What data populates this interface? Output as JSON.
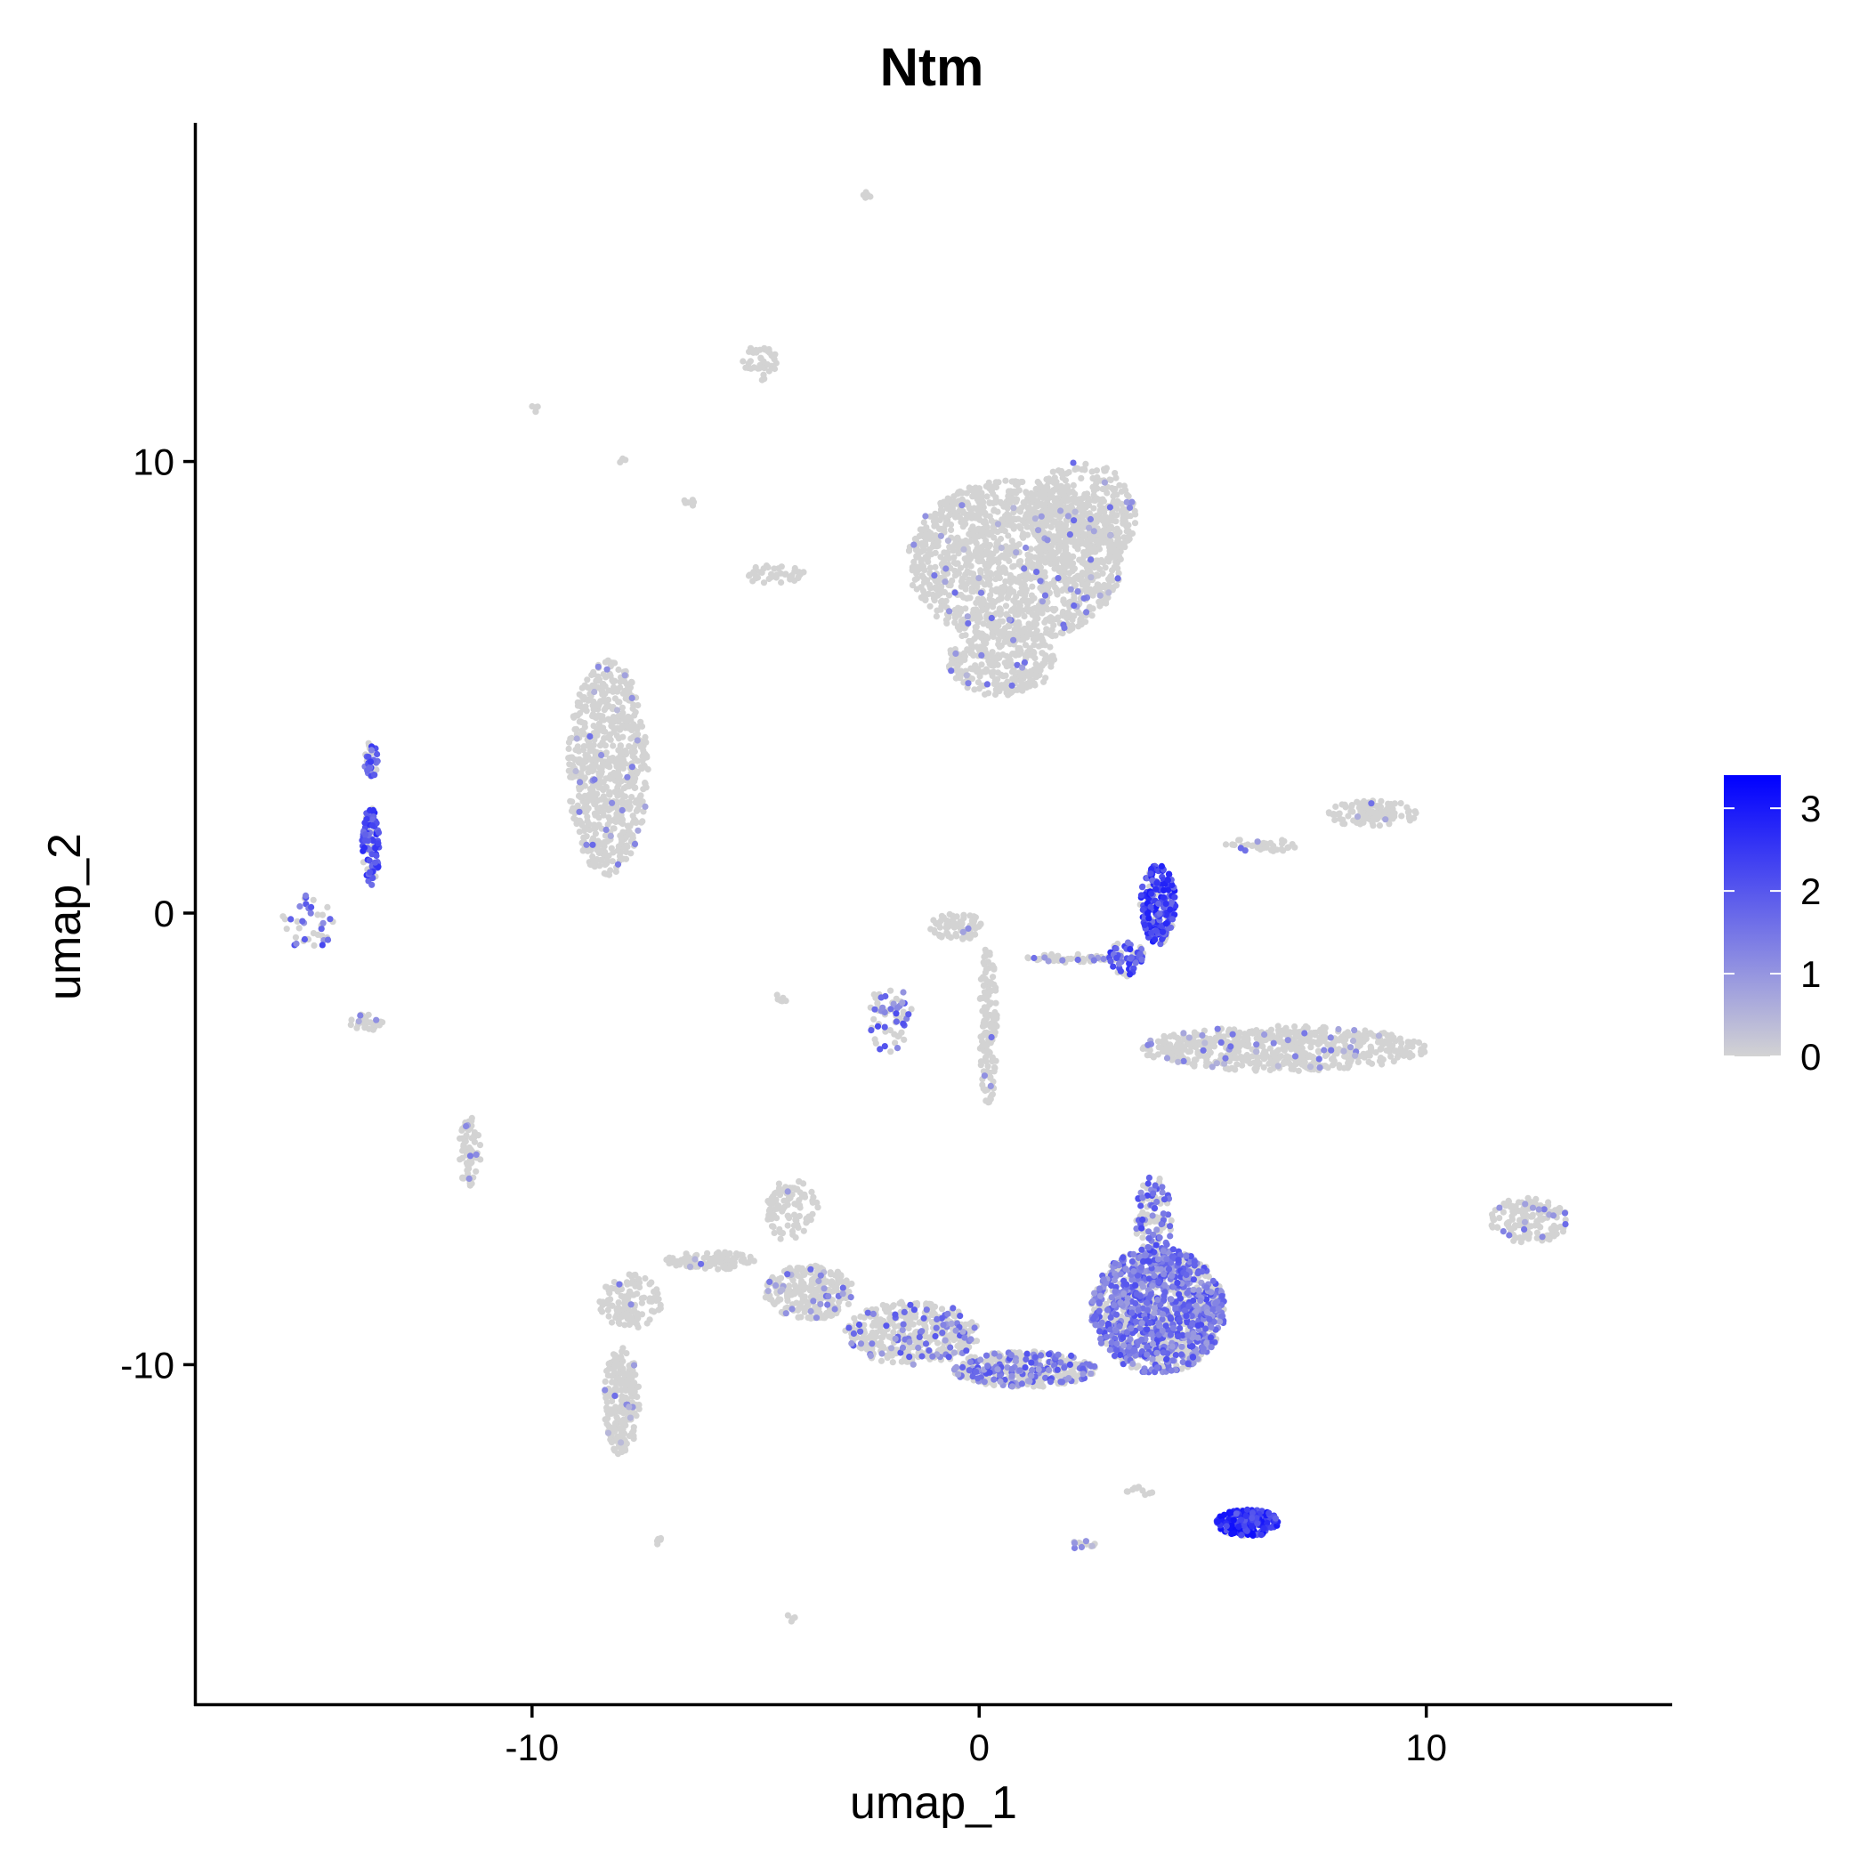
{
  "chart_data": {
    "type": "scatter",
    "title": "Ntm",
    "xlabel": "umap_1",
    "ylabel": "umap_2",
    "xlim": [
      -17.5,
      15.5
    ],
    "ylim": [
      -17.5,
      17.5
    ],
    "x_ticks": [
      {
        "value": -10,
        "label": "-10"
      },
      {
        "value": 0,
        "label": "0"
      },
      {
        "value": 10,
        "label": "10"
      }
    ],
    "y_ticks": [
      {
        "value": 10,
        "label": "10"
      },
      {
        "value": 0,
        "label": "0"
      },
      {
        "value": -10,
        "label": "-10"
      }
    ],
    "grid": false,
    "legend": {
      "type": "colorbar",
      "placement": "right",
      "min": 0,
      "max": 3.4,
      "low_color": "#d3d3d3",
      "high_color": "#0000ff",
      "ticks": [
        {
          "value": 3,
          "label": "3"
        },
        {
          "value": 2,
          "label": "2"
        },
        {
          "value": 1,
          "label": "1"
        },
        {
          "value": 0,
          "label": "0"
        }
      ]
    },
    "clusters": [
      {
        "x": 0.8,
        "y": 7.8,
        "rx": 2.4,
        "ry": 1.8,
        "n": 1400,
        "expr": 0.03,
        "level": 1.0
      },
      {
        "x": 2.3,
        "y": 8.8,
        "rx": 1.2,
        "ry": 1.2,
        "n": 400,
        "expr": 0.03,
        "level": 1.0
      },
      {
        "x": 0.5,
        "y": 5.6,
        "rx": 1.2,
        "ry": 0.8,
        "n": 300,
        "expr": 0.03,
        "level": 1.0
      },
      {
        "x": -8.3,
        "y": 3.2,
        "rx": 0.9,
        "ry": 2.4,
        "n": 700,
        "expr": 0.03,
        "level": 1.0
      },
      {
        "x": -4.9,
        "y": 12.2,
        "rx": 0.4,
        "ry": 0.4,
        "n": 40,
        "expr": 0.0,
        "level": 0.0
      },
      {
        "x": -2.5,
        "y": 15.9,
        "rx": 0.1,
        "ry": 0.1,
        "n": 6,
        "expr": 0.0,
        "level": 0.0
      },
      {
        "x": -9.9,
        "y": 11.2,
        "rx": 0.1,
        "ry": 0.1,
        "n": 6,
        "expr": 0.0,
        "level": 0.0
      },
      {
        "x": -4.6,
        "y": 7.5,
        "rx": 0.7,
        "ry": 0.2,
        "n": 40,
        "expr": 0.05,
        "level": 0.8
      },
      {
        "x": 4.0,
        "y": 0.2,
        "rx": 0.4,
        "ry": 0.9,
        "n": 220,
        "expr": 0.75,
        "level": 2.3
      },
      {
        "x": 3.3,
        "y": -1.0,
        "rx": 0.4,
        "ry": 0.4,
        "n": 60,
        "expr": 0.6,
        "level": 2.0
      },
      {
        "x": 2.0,
        "y": -1.0,
        "rx": 1.0,
        "ry": 0.1,
        "n": 50,
        "expr": 0.15,
        "level": 1.2
      },
      {
        "x": 0.2,
        "y": -2.5,
        "rx": 0.2,
        "ry": 1.8,
        "n": 150,
        "expr": 0.03,
        "level": 1.0
      },
      {
        "x": -0.5,
        "y": -0.3,
        "rx": 0.6,
        "ry": 0.3,
        "n": 80,
        "expr": 0.03,
        "level": 1.0
      },
      {
        "x": -2.0,
        "y": -2.3,
        "rx": 0.5,
        "ry": 0.8,
        "n": 60,
        "expr": 0.45,
        "level": 1.5
      },
      {
        "x": 6.8,
        "y": -3.0,
        "rx": 3.2,
        "ry": 0.5,
        "n": 600,
        "expr": 0.06,
        "level": 1.0
      },
      {
        "x": 8.8,
        "y": 2.2,
        "rx": 1.0,
        "ry": 0.3,
        "n": 120,
        "expr": 0.05,
        "level": 1.0
      },
      {
        "x": 6.3,
        "y": 1.5,
        "rx": 0.8,
        "ry": 0.15,
        "n": 40,
        "expr": 0.05,
        "level": 1.0
      },
      {
        "x": 4.0,
        "y": -8.8,
        "rx": 1.5,
        "ry": 1.4,
        "n": 1200,
        "expr": 0.6,
        "level": 1.5
      },
      {
        "x": 3.9,
        "y": -6.8,
        "rx": 0.4,
        "ry": 1.0,
        "n": 120,
        "expr": 0.5,
        "level": 1.6
      },
      {
        "x": 1.0,
        "y": -10.1,
        "rx": 1.6,
        "ry": 0.4,
        "n": 400,
        "expr": 0.35,
        "level": 1.4
      },
      {
        "x": -1.5,
        "y": -9.3,
        "rx": 1.5,
        "ry": 0.7,
        "n": 400,
        "expr": 0.18,
        "level": 1.3
      },
      {
        "x": -3.8,
        "y": -8.4,
        "rx": 1.0,
        "ry": 0.6,
        "n": 250,
        "expr": 0.07,
        "level": 1.0
      },
      {
        "x": -4.2,
        "y": -6.6,
        "rx": 0.6,
        "ry": 0.7,
        "n": 100,
        "expr": 0.03,
        "level": 1.0
      },
      {
        "x": -6.0,
        "y": -7.7,
        "rx": 1.0,
        "ry": 0.2,
        "n": 100,
        "expr": 0.03,
        "level": 1.0
      },
      {
        "x": -7.8,
        "y": -8.6,
        "rx": 0.7,
        "ry": 0.6,
        "n": 120,
        "expr": 0.03,
        "level": 1.0
      },
      {
        "x": -8.0,
        "y": -10.8,
        "rx": 0.4,
        "ry": 1.2,
        "n": 220,
        "expr": 0.04,
        "level": 1.0
      },
      {
        "x": 6.0,
        "y": -13.5,
        "rx": 0.7,
        "ry": 0.3,
        "n": 200,
        "expr": 0.85,
        "level": 2.5
      },
      {
        "x": 12.3,
        "y": -6.8,
        "rx": 0.9,
        "ry": 0.5,
        "n": 150,
        "expr": 0.1,
        "level": 1.2
      },
      {
        "x": -11.4,
        "y": -5.3,
        "rx": 0.25,
        "ry": 0.8,
        "n": 70,
        "expr": 0.08,
        "level": 1.0
      },
      {
        "x": -13.6,
        "y": 1.5,
        "rx": 0.2,
        "ry": 0.9,
        "n": 100,
        "expr": 0.75,
        "level": 2.1
      },
      {
        "x": -13.6,
        "y": 3.4,
        "rx": 0.15,
        "ry": 0.4,
        "n": 40,
        "expr": 0.7,
        "level": 1.8
      },
      {
        "x": -15.0,
        "y": -0.2,
        "rx": 0.6,
        "ry": 0.6,
        "n": 40,
        "expr": 0.5,
        "level": 1.6
      },
      {
        "x": -13.7,
        "y": -2.4,
        "rx": 0.4,
        "ry": 0.2,
        "n": 25,
        "expr": 0.2,
        "level": 1.0
      },
      {
        "x": 3.6,
        "y": -12.8,
        "rx": 0.3,
        "ry": 0.1,
        "n": 10,
        "expr": 0.0,
        "level": 0.0
      },
      {
        "x": 2.3,
        "y": -14.0,
        "rx": 0.3,
        "ry": 0.15,
        "n": 12,
        "expr": 0.3,
        "level": 1.0
      },
      {
        "x": -7.2,
        "y": -13.9,
        "rx": 0.1,
        "ry": 0.1,
        "n": 5,
        "expr": 0.0,
        "level": 0.0
      },
      {
        "x": -4.2,
        "y": -15.6,
        "rx": 0.1,
        "ry": 0.1,
        "n": 5,
        "expr": 0.0,
        "level": 0.0
      },
      {
        "x": -4.5,
        "y": -1.9,
        "rx": 0.2,
        "ry": 0.1,
        "n": 6,
        "expr": 0.0,
        "level": 0.0
      },
      {
        "x": -6.5,
        "y": 9.1,
        "rx": 0.15,
        "ry": 0.1,
        "n": 6,
        "expr": 0.0,
        "level": 0.0
      },
      {
        "x": -8.0,
        "y": 10.0,
        "rx": 0.1,
        "ry": 0.1,
        "n": 4,
        "expr": 0.0,
        "level": 0.0
      }
    ]
  }
}
